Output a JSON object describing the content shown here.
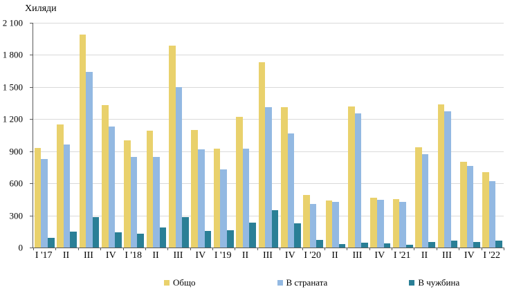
{
  "chart_data": {
    "type": "bar",
    "title": "",
    "ylabel": "Хиляди",
    "xlabel": "",
    "ylim": [
      0,
      2100
    ],
    "ytick_step": 300,
    "ytick_labels": [
      "0",
      "300",
      "600",
      "900",
      "1 200",
      "1 500",
      "1 800",
      "2 100"
    ],
    "grid": true,
    "legend_position": "bottom",
    "categories": [
      "I '17",
      "II",
      "III",
      "IV",
      "I '18",
      "II",
      "III",
      "IV",
      "I '19",
      "II",
      "III",
      "IV",
      "I '20",
      "II",
      "III",
      "IV",
      "I '21",
      "II",
      "III",
      "IV",
      "I '22"
    ],
    "series": [
      {
        "name": "Общо",
        "color": "#e9d16c",
        "values": [
          930,
          1150,
          1990,
          1330,
          1000,
          1090,
          1890,
          1100,
          925,
          1220,
          1730,
          1310,
          490,
          440,
          1320,
          465,
          455,
          935,
          1335,
          800,
          705
        ]
      },
      {
        "name": "В страната",
        "color": "#93b9e2",
        "values": [
          830,
          960,
          1640,
          1130,
          850,
          845,
          1500,
          915,
          730,
          925,
          1310,
          1065,
          410,
          430,
          1255,
          445,
          430,
          870,
          1275,
          760,
          620
        ]
      },
      {
        "name": "В чужбина",
        "color": "#2a7f96",
        "values": [
          90,
          150,
          285,
          145,
          130,
          190,
          285,
          155,
          165,
          230,
          350,
          225,
          70,
          30,
          45,
          40,
          25,
          50,
          65,
          50,
          65
        ]
      }
    ]
  },
  "colors": {
    "gridline": "#d9d9d9",
    "axis": "#595959",
    "background": "#ffffff"
  }
}
